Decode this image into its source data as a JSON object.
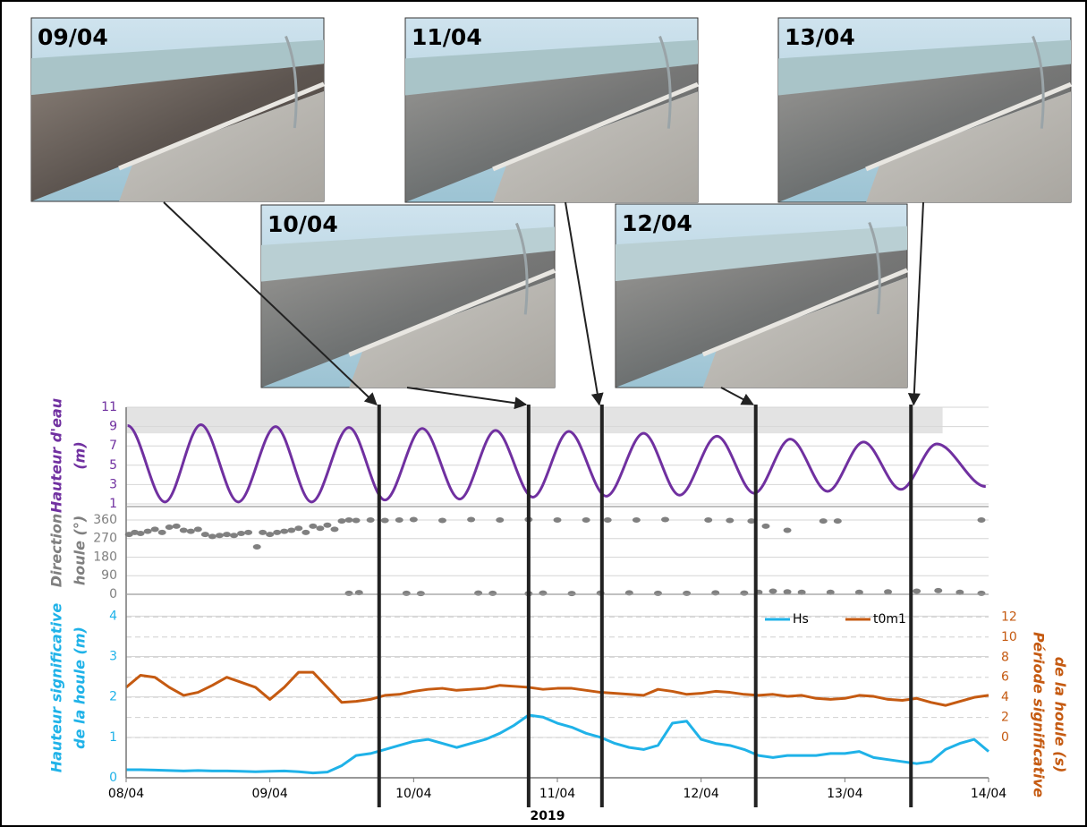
{
  "photos": [
    {
      "label": "09/04",
      "time": 1.76
    },
    {
      "label": "10/04",
      "time": 2.8
    },
    {
      "label": "11/04",
      "time": 3.31
    },
    {
      "label": "12/04",
      "time": 4.38
    },
    {
      "label": "13/04",
      "time": 5.46
    }
  ],
  "chart_data": [
    {
      "type": "line",
      "ylabel": [
        "Hauteur d'eau",
        "(m)"
      ],
      "ylabel_color": "#7030a0",
      "x": [
        0.01,
        0.27,
        0.52,
        0.78,
        1.04,
        1.29,
        1.55,
        1.8,
        2.06,
        2.32,
        2.57,
        2.83,
        3.08,
        3.34,
        3.6,
        3.85,
        4.11,
        4.37,
        4.62,
        4.88,
        5.13,
        5.39,
        5.64,
        5.98
      ],
      "series": [
        {
          "color": "#7030a0",
          "values": [
            9.1,
            1.2,
            9.2,
            1.2,
            9.0,
            1.2,
            8.9,
            1.4,
            8.8,
            1.5,
            8.6,
            1.7,
            8.5,
            1.8,
            8.3,
            1.9,
            8.0,
            2.1,
            7.7,
            2.3,
            7.4,
            2.5,
            7.2,
            2.8
          ]
        }
      ],
      "xlim": [
        0,
        6
      ],
      "ylim": [
        1,
        11
      ],
      "yticks": [
        1,
        3,
        5,
        7,
        9,
        11
      ],
      "grid": true,
      "shaded": {
        "xlim": [
          0,
          5.68
        ],
        "ylim": [
          8.3,
          11
        ],
        "color": "#e3e3e3"
      }
    },
    {
      "type": "scatter",
      "ylabel": [
        "Direction",
        "houle (°)"
      ],
      "ylabel_color": "#7f7f7f",
      "x": [
        0.02,
        0.06,
        0.1,
        0.15,
        0.2,
        0.25,
        0.3,
        0.35,
        0.4,
        0.45,
        0.5,
        0.55,
        0.6,
        0.65,
        0.7,
        0.75,
        0.8,
        0.85,
        0.91,
        0.95,
        1.0,
        1.05,
        1.1,
        1.15,
        1.2,
        1.25,
        1.3,
        1.35,
        1.4,
        1.45,
        1.5,
        1.55,
        1.55,
        1.6,
        1.62,
        1.7,
        1.8,
        1.9,
        1.95,
        2.0,
        2.05,
        2.2,
        2.4,
        2.45,
        2.55,
        2.6,
        2.8,
        2.8,
        2.9,
        3.0,
        3.1,
        3.2,
        3.3,
        3.35,
        3.5,
        3.55,
        3.7,
        3.75,
        3.9,
        4.05,
        4.1,
        4.2,
        4.3,
        4.35,
        4.4,
        4.45,
        4.5,
        4.6,
        4.6,
        4.7,
        4.85,
        4.9,
        4.95,
        5.1,
        5.3,
        5.5,
        5.65,
        5.8,
        5.95,
        5.95
      ],
      "values": [
        290,
        300,
        295,
        305,
        315,
        300,
        325,
        330,
        310,
        305,
        315,
        290,
        280,
        285,
        290,
        285,
        295,
        300,
        230,
        300,
        290,
        300,
        305,
        310,
        320,
        300,
        330,
        320,
        335,
        315,
        355,
        360,
        5,
        358,
        8,
        360,
        358,
        360,
        5,
        362,
        4,
        358,
        362,
        6,
        5,
        360,
        362,
        3,
        6,
        360,
        4,
        360,
        6,
        360,
        7,
        360,
        5,
        362,
        5,
        360,
        7,
        358,
        6,
        355,
        10,
        330,
        15,
        310,
        12,
        10,
        355,
        10,
        355,
        10,
        12,
        15,
        18,
        10,
        360,
        5
      ],
      "color": "#808080",
      "xlim": [
        0,
        6
      ],
      "ylim": [
        0,
        425
      ],
      "yticks": [
        0,
        90,
        180,
        270,
        360
      ],
      "grid": true
    },
    {
      "type": "line",
      "ylabel": [
        "Hauteur significative",
        "de la houle (m)"
      ],
      "ylabel_color": "#1fb2e8",
      "y2label": [
        "Période significative",
        "de la houle (s)"
      ],
      "y2label_color": "#c55a11",
      "x": [
        0,
        0.1,
        0.2,
        0.3,
        0.4,
        0.5,
        0.6,
        0.7,
        0.8,
        0.9,
        1.0,
        1.1,
        1.2,
        1.3,
        1.4,
        1.5,
        1.6,
        1.7,
        1.8,
        1.9,
        2.0,
        2.1,
        2.2,
        2.3,
        2.4,
        2.5,
        2.6,
        2.7,
        2.8,
        2.9,
        3.0,
        3.1,
        3.2,
        3.3,
        3.4,
        3.5,
        3.6,
        3.7,
        3.8,
        3.9,
        4.0,
        4.1,
        4.2,
        4.3,
        4.4,
        4.5,
        4.6,
        4.7,
        4.8,
        4.9,
        5.0,
        5.1,
        5.2,
        5.3,
        5.4,
        5.5,
        5.6,
        5.7,
        5.8,
        5.9,
        6.0
      ],
      "series": [
        {
          "name": "Hs",
          "color": "#1fb2e8",
          "values": [
            0.2,
            0.2,
            0.19,
            0.18,
            0.17,
            0.18,
            0.17,
            0.17,
            0.16,
            0.15,
            0.16,
            0.17,
            0.15,
            0.12,
            0.14,
            0.3,
            0.55,
            0.6,
            0.7,
            0.8,
            0.9,
            0.95,
            0.85,
            0.75,
            0.85,
            0.95,
            1.1,
            1.3,
            1.55,
            1.5,
            1.35,
            1.25,
            1.1,
            1.0,
            0.85,
            0.75,
            0.7,
            0.8,
            1.35,
            1.4,
            0.95,
            0.85,
            0.8,
            0.7,
            0.55,
            0.5,
            0.55,
            0.55,
            0.55,
            0.6,
            0.6,
            0.65,
            0.5,
            0.45,
            0.4,
            0.35,
            0.4,
            0.7,
            0.85,
            0.95,
            0.65
          ]
        },
        {
          "name": "t0m1",
          "color": "#c55a11",
          "axis": "y2",
          "values": [
            5.0,
            6.2,
            6.0,
            5.0,
            4.2,
            4.5,
            5.2,
            6.0,
            5.5,
            5.0,
            3.8,
            5.0,
            6.5,
            6.5,
            5.0,
            3.5,
            3.6,
            3.8,
            4.2,
            4.3,
            4.6,
            4.8,
            4.9,
            4.7,
            4.8,
            4.9,
            5.2,
            5.1,
            5.0,
            4.8,
            4.9,
            4.9,
            4.7,
            4.5,
            4.4,
            4.3,
            4.2,
            4.8,
            4.6,
            4.3,
            4.4,
            4.6,
            4.5,
            4.3,
            4.2,
            4.3,
            4.1,
            4.2,
            3.9,
            3.8,
            3.9,
            4.2,
            4.1,
            3.8,
            3.7,
            3.9,
            3.5,
            3.2,
            3.6,
            4.0,
            4.2
          ]
        }
      ],
      "xlim": [
        0,
        6
      ],
      "xticks": [
        {
          "value": 0,
          "label": "08/04"
        },
        {
          "value": 1,
          "label": "09/04"
        },
        {
          "value": 2,
          "label": "10/04"
        },
        {
          "value": 3,
          "label": "11/04"
        },
        {
          "value": 4,
          "label": "12/04"
        },
        {
          "value": 5,
          "label": "13/04"
        },
        {
          "value": 6,
          "label": "14/04"
        }
      ],
      "xlabel": "2019",
      "ylim": [
        0,
        4.45
      ],
      "yticks": [
        0,
        1,
        2,
        3,
        4
      ],
      "y2lim": [
        -4,
        13.9
      ],
      "y2ticks": [
        0,
        2,
        4,
        6,
        8,
        10,
        12
      ],
      "grid": true
    }
  ]
}
